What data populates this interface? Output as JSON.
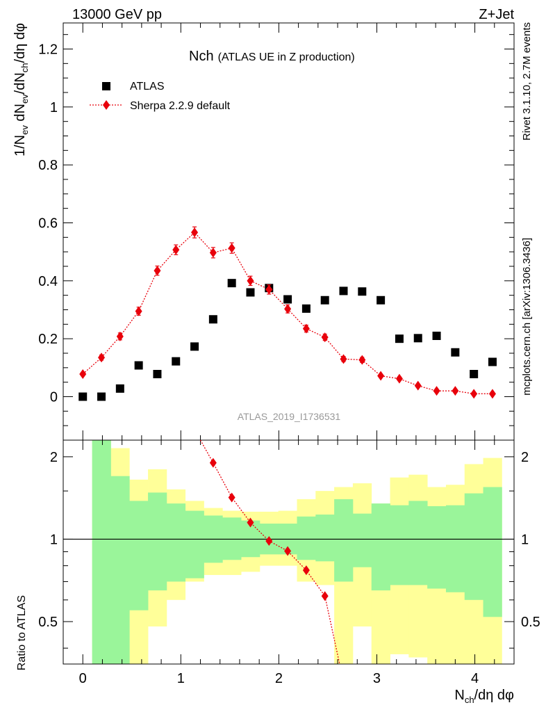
{
  "header": {
    "left": "13000 GeV pp",
    "right": "Z+Jet"
  },
  "side": {
    "rivet": "Rivet 3.1.10,  2.7M events",
    "mcplots": "mcplots.cern.ch [arXiv:1306.3436]"
  },
  "chart_data": {
    "type": "scatter",
    "title_main": "Nch",
    "title_sub": "(ATLAS UE in Z production)",
    "analysis_tag": "ATLAS_2019_I1736531",
    "x": [
      0.0,
      0.19,
      0.38,
      0.57,
      0.76,
      0.95,
      1.14,
      1.33,
      1.52,
      1.71,
      1.9,
      2.09,
      2.28,
      2.47,
      2.66,
      2.85,
      3.04,
      3.23,
      3.42,
      3.61,
      3.8,
      3.99,
      4.18
    ],
    "series": [
      {
        "name": "ATLAS",
        "values": [
          0.0,
          0.0,
          0.028,
          0.108,
          0.078,
          0.122,
          0.173,
          0.267,
          0.392,
          0.36,
          0.375,
          0.336,
          0.304,
          0.333,
          0.365,
          0.363,
          0.333,
          0.2,
          0.202,
          0.21,
          0.153,
          0.078,
          0.12
        ]
      },
      {
        "name": "Sherpa 2.2.9 default",
        "values": [
          0.078,
          0.135,
          0.208,
          0.295,
          0.435,
          0.507,
          0.567,
          0.497,
          0.513,
          0.4,
          0.37,
          0.303,
          0.235,
          0.205,
          0.13,
          0.127,
          0.072,
          0.062,
          0.038,
          0.02,
          0.02,
          0.01,
          0.01
        ],
        "errors": [
          0.006,
          0.009,
          0.012,
          0.014,
          0.016,
          0.017,
          0.019,
          0.018,
          0.018,
          0.016,
          0.016,
          0.014,
          0.012,
          0.011,
          0.009,
          0.009,
          0.006,
          0.006,
          0.005,
          0.004,
          0.004,
          0.003,
          0.003
        ]
      }
    ],
    "ylabel": "1/N_ev dN_ev/dN_ch/dη dφ",
    "xlabel": "N_ch/dη dφ",
    "xlim": [
      -0.2,
      4.4
    ],
    "ylim": [
      -0.15,
      1.29
    ],
    "xticks": [
      "0",
      "1",
      "2",
      "3",
      "4"
    ],
    "yticks": [
      "0",
      "0.2",
      "0.4",
      "0.6",
      "0.8",
      "1",
      "1.2"
    ],
    "ratio": {
      "ylabel": "Ratio to ATLAS",
      "ylim": [
        0.35,
        2.3
      ],
      "yticks": [
        "0.5",
        "1",
        "2"
      ],
      "bin_edges": [
        0.095,
        0.285,
        0.475,
        0.665,
        0.855,
        1.045,
        1.235,
        1.425,
        1.615,
        1.805,
        1.995,
        2.185,
        2.375,
        2.565,
        2.755,
        2.945,
        3.135,
        3.325,
        3.515,
        3.705,
        3.895,
        4.085,
        4.275
      ],
      "band_inner": {
        "low": [
          0.35,
          0.35,
          0.55,
          0.65,
          0.7,
          0.72,
          0.82,
          0.84,
          0.86,
          0.88,
          0.88,
          0.84,
          0.83,
          0.7,
          0.79,
          0.65,
          0.68,
          0.68,
          0.66,
          0.64,
          0.6,
          0.52
        ],
        "high": [
          2.3,
          1.7,
          1.38,
          1.48,
          1.35,
          1.27,
          1.22,
          1.2,
          1.17,
          1.14,
          1.14,
          1.21,
          1.23,
          1.4,
          1.24,
          1.35,
          1.33,
          1.38,
          1.32,
          1.33,
          1.47,
          1.55
        ]
      },
      "band_outer": {
        "low": [
          0.35,
          0.35,
          0.35,
          0.48,
          0.6,
          0.7,
          0.74,
          0.74,
          0.76,
          0.8,
          0.8,
          0.7,
          0.68,
          0.35,
          0.48,
          0.35,
          0.38,
          0.37,
          0.35,
          0.35,
          0.35,
          0.35
        ],
        "high": [
          2.3,
          2.15,
          1.65,
          1.8,
          1.52,
          1.38,
          1.3,
          1.27,
          1.26,
          1.26,
          1.27,
          1.4,
          1.5,
          1.55,
          1.6,
          1.35,
          1.68,
          1.72,
          1.55,
          1.58,
          1.88,
          1.98
        ]
      },
      "sherpa_x": [
        1.33,
        1.52,
        1.71,
        1.9,
        2.09,
        2.28,
        2.47
      ],
      "sherpa_ratio": [
        1.9,
        1.42,
        1.15,
        0.985,
        0.905,
        0.77,
        0.62
      ],
      "sherpa_err": [
        0.04,
        0.03,
        0.025,
        0.02,
        0.02,
        0.02,
        0.02
      ],
      "sherpa_line_start": [
        1.2,
        2.4
      ],
      "sherpa_line_end": [
        2.62,
        0.35
      ]
    }
  },
  "colors": {
    "data": "#000000",
    "mc": "#e8000b",
    "band_inner": "#9af59a",
    "band_outer": "#ffff99",
    "side_text": "#888888",
    "tag_text": "#999999"
  }
}
